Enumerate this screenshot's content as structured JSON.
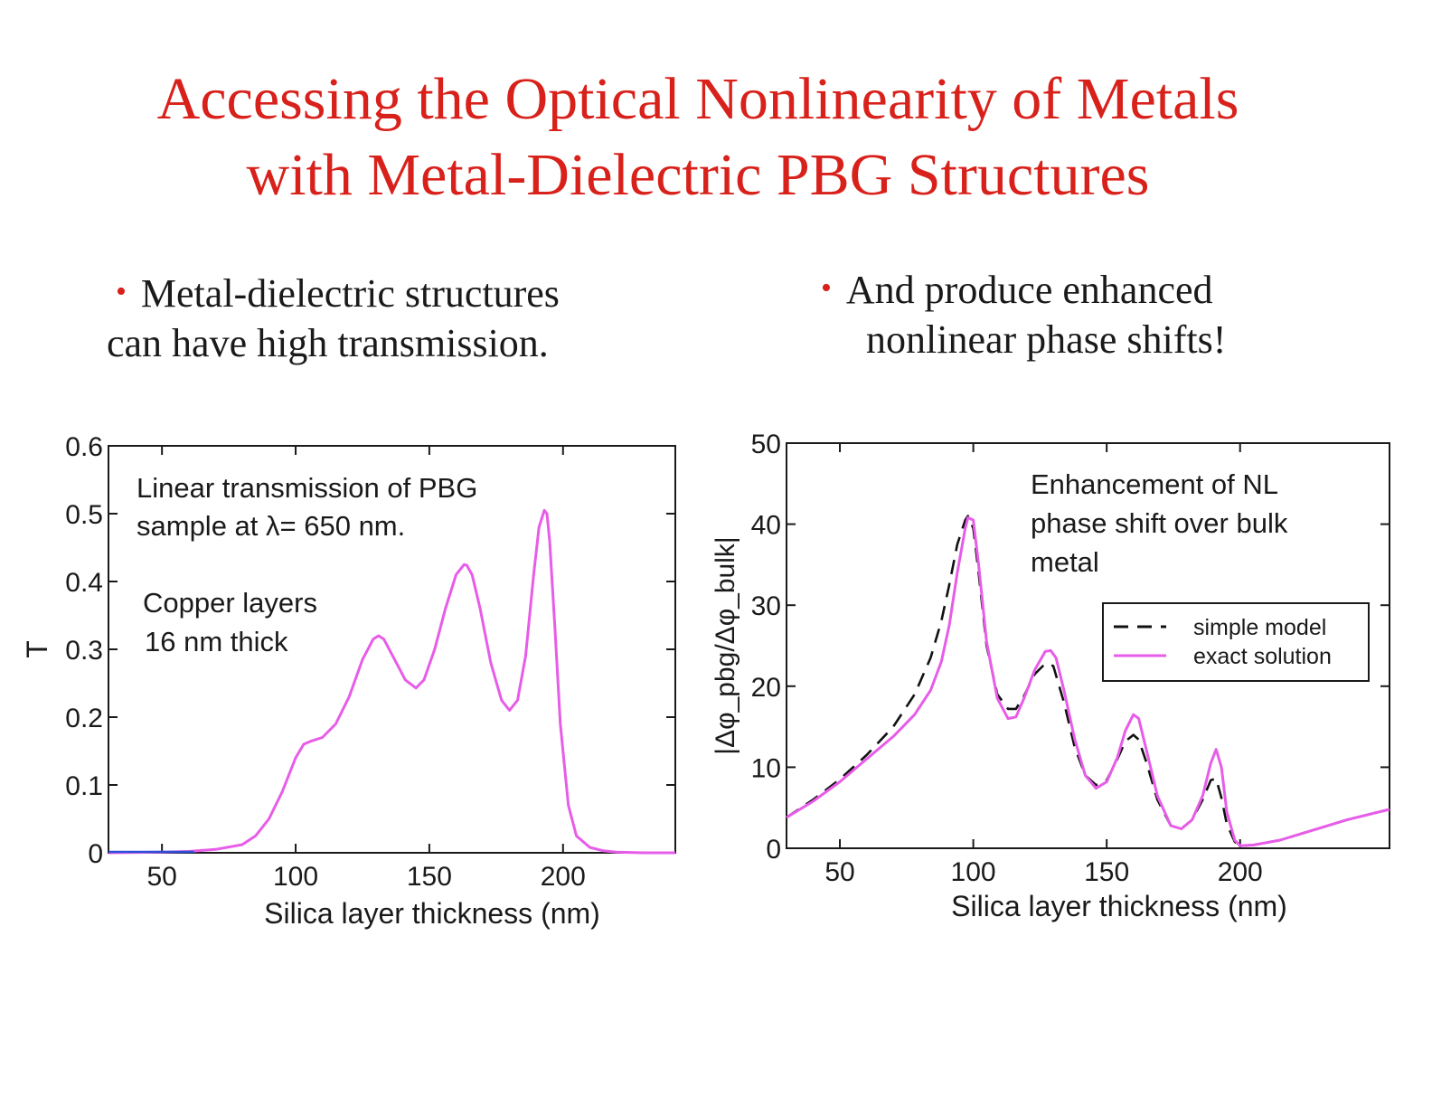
{
  "title": {
    "line1": "Accessing the Optical Nonlinearity of Metals",
    "line2": "with Metal-Dielectric PBG Structures"
  },
  "bullets": {
    "left": {
      "marker": "•",
      "line1": "Metal-dielectric structures",
      "line2": "can have high transmission."
    },
    "right": {
      "marker": "•",
      "line1": "And produce enhanced",
      "line2": "nonlinear phase shifts!"
    }
  },
  "colors": {
    "title": "#d9211b",
    "bullet_marker": "#d9211b",
    "magenta_curve": "#e75ce8",
    "blue_baseline": "#2b4fd6",
    "dashed_curve": "#111111"
  },
  "chart_data": [
    {
      "type": "line",
      "xlabel": "Silica layer thickness (nm)",
      "ylabel": "T",
      "xlim": [
        30,
        242
      ],
      "ylim": [
        0,
        0.6
      ],
      "xticks": [
        50,
        100,
        150,
        200
      ],
      "yticks": [
        0,
        0.1,
        0.2,
        0.3,
        0.4,
        0.5,
        0.6
      ],
      "ytick_labels": [
        "0",
        "0.1",
        "0.2",
        "0.3",
        "0.4",
        "0.5",
        "0.6"
      ],
      "grid": false,
      "annotations": [
        {
          "lines": [
            "Linear transmission of PBG",
            "sample at  λ= 650 nm."
          ]
        },
        {
          "lines": [
            "Copper layers",
            "16 nm thick"
          ]
        }
      ],
      "series": [
        {
          "x": [
            30,
            50,
            60,
            70,
            80,
            85,
            90,
            95,
            100,
            103,
            106,
            110,
            115,
            120,
            125,
            129,
            131,
            133,
            137,
            141,
            145,
            148,
            152,
            156,
            160,
            163,
            164,
            166,
            169,
            173,
            177,
            180,
            183,
            186,
            189,
            191,
            193,
            194,
            195,
            197,
            199,
            202,
            205,
            210,
            215,
            220,
            230,
            242
          ],
          "values": [
            0,
            0.001,
            0.002,
            0.005,
            0.012,
            0.025,
            0.05,
            0.09,
            0.14,
            0.16,
            0.165,
            0.17,
            0.19,
            0.23,
            0.285,
            0.315,
            0.32,
            0.315,
            0.285,
            0.255,
            0.243,
            0.255,
            0.3,
            0.36,
            0.41,
            0.425,
            0.424,
            0.41,
            0.36,
            0.28,
            0.225,
            0.21,
            0.225,
            0.29,
            0.41,
            0.48,
            0.505,
            0.5,
            0.46,
            0.33,
            0.19,
            0.07,
            0.025,
            0.008,
            0.003,
            0.001,
            0,
            0
          ]
        }
      ]
    },
    {
      "type": "line",
      "xlabel": "Silica layer thickness (nm)",
      "ylabel": "|Δφ_pbg/Δφ_bulk|",
      "xlim": [
        30,
        256
      ],
      "ylim": [
        0,
        50
      ],
      "xticks": [
        50,
        100,
        150,
        200
      ],
      "yticks": [
        0,
        10,
        20,
        30,
        40,
        50
      ],
      "grid": false,
      "legend": "right",
      "annotations": [
        {
          "lines": [
            "Enhancement of NL",
            "phase shift over bulk",
            "metal"
          ]
        }
      ],
      "series": [
        {
          "name": "simple model",
          "style": "dashed",
          "x": [
            30,
            40,
            50,
            60,
            70,
            78,
            84,
            88,
            91,
            94,
            97,
            98,
            100,
            102,
            105,
            109,
            113,
            116,
            119,
            123,
            127,
            130,
            134,
            138,
            142,
            146,
            150,
            154,
            157,
            160,
            162,
            165,
            169,
            174,
            178,
            182,
            186,
            189,
            191,
            193,
            195,
            198,
            200,
            205,
            215,
            225,
            240,
            256
          ],
          "values": [
            3.8,
            6,
            8.5,
            11.5,
            15,
            19,
            23.5,
            28,
            32.5,
            37.5,
            40.5,
            41,
            39.5,
            34,
            25,
            19,
            17.2,
            17.2,
            18.8,
            21.5,
            22.8,
            22.5,
            18,
            12.5,
            9,
            7.8,
            8.4,
            11,
            13.2,
            14,
            13.4,
            10.5,
            6,
            2.8,
            2.4,
            3.5,
            6,
            8.4,
            8.6,
            6.2,
            3,
            0.8,
            0.3,
            0.4,
            1,
            2,
            3.5,
            4.8
          ]
        },
        {
          "name": "exact solution",
          "style": "solid",
          "x": [
            30,
            40,
            50,
            60,
            70,
            78,
            84,
            88,
            91,
            94,
            97,
            98,
            100,
            102,
            105,
            109,
            113,
            116,
            119,
            123,
            127,
            129,
            131,
            134,
            138,
            142,
            146,
            150,
            154,
            157,
            160,
            162,
            165,
            169,
            174,
            178,
            182,
            186,
            189,
            191,
            193,
            195,
            198,
            200,
            205,
            215,
            225,
            240,
            256
          ],
          "values": [
            3.8,
            5.8,
            8.2,
            11,
            13.8,
            16.5,
            19.5,
            23,
            27.5,
            34,
            39.5,
            40.8,
            40.5,
            35,
            25.5,
            18.5,
            16,
            16.2,
            18.5,
            22,
            24.3,
            24.4,
            23.5,
            19.5,
            13.5,
            9,
            7.4,
            8.2,
            11.2,
            14.5,
            16.5,
            16,
            12,
            6.5,
            2.8,
            2.4,
            3.5,
            6.5,
            10.5,
            12.2,
            10,
            4.5,
            1,
            0.3,
            0.4,
            1,
            2,
            3.5,
            4.8
          ]
        }
      ]
    }
  ]
}
